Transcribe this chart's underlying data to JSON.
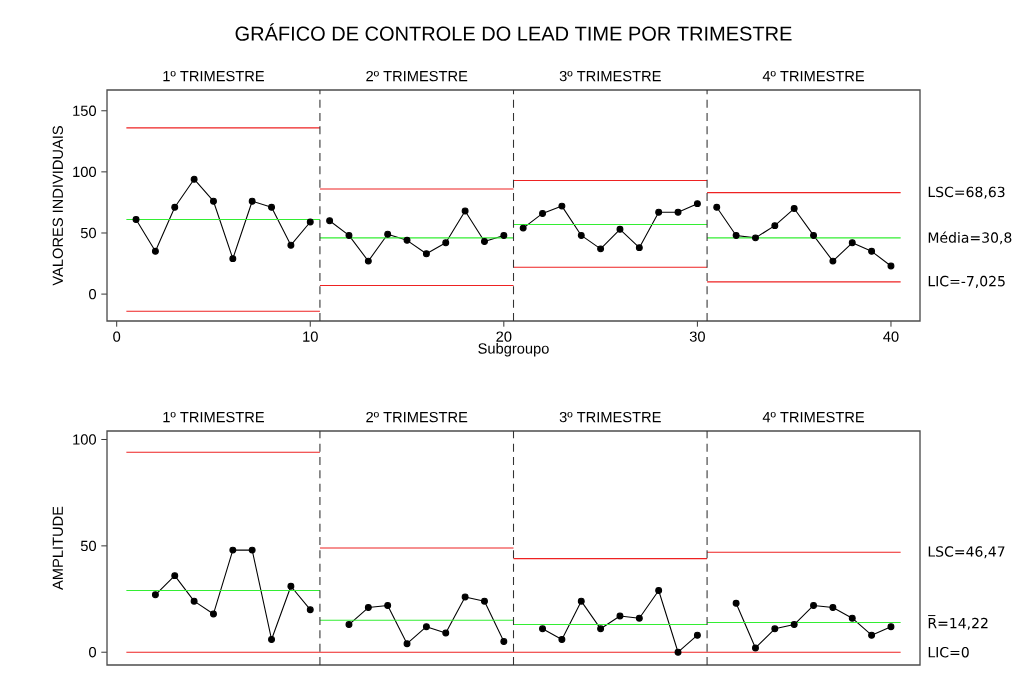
{
  "chart_data": [
    {
      "type": "line",
      "title": "GRÁFICO DE CONTROLE DO LEAD TIME POR TRIMESTRE",
      "xlabel": "Subgroupo",
      "ylabel": "VALORES INDIVIDUAIS",
      "xlim": [
        -0.5,
        41.5
      ],
      "ylim": [
        -22,
        167
      ],
      "xticks": [
        0,
        10,
        20,
        30,
        40
      ],
      "yticks": [
        0,
        50,
        100,
        150
      ],
      "marker": "circle",
      "line_style": "solid",
      "series": [
        {
          "color": "#000000",
          "x": [
            1,
            2,
            3,
            4,
            5,
            6,
            7,
            8,
            9,
            10
          ],
          "values": [
            61,
            35,
            71,
            94,
            76,
            29,
            76,
            71,
            40,
            59
          ]
        },
        {
          "color": "#000000",
          "x": [
            11,
            12,
            13,
            14,
            15,
            16,
            17,
            18,
            19,
            20
          ],
          "values": [
            60,
            48,
            27,
            49,
            44,
            33,
            42,
            68,
            43,
            48
          ]
        },
        {
          "color": "#000000",
          "x": [
            21,
            22,
            23,
            24,
            25,
            26,
            27,
            28,
            29,
            30
          ],
          "values": [
            54,
            66,
            72,
            48,
            37,
            53,
            38,
            67,
            67,
            74
          ]
        },
        {
          "color": "#000000",
          "x": [
            31,
            32,
            33,
            34,
            35,
            36,
            37,
            38,
            39,
            40
          ],
          "values": [
            71,
            48,
            46,
            56,
            70,
            48,
            27,
            42,
            35,
            23
          ]
        },
        {
          "color": "#ee2222",
          "marker": "none",
          "x": [
            0.5,
            10.5
          ],
          "values": [
            136,
            136
          ]
        },
        {
          "color": "#33ee33",
          "marker": "none",
          "x": [
            0.5,
            10.5
          ],
          "values": [
            61,
            61
          ]
        },
        {
          "color": "#ee2222",
          "marker": "none",
          "x": [
            0.5,
            10.5
          ],
          "values": [
            -14,
            -14
          ]
        },
        {
          "color": "#ee2222",
          "marker": "none",
          "x": [
            10.5,
            20.5
          ],
          "values": [
            86,
            86
          ]
        },
        {
          "color": "#33ee33",
          "marker": "none",
          "x": [
            10.5,
            20.5
          ],
          "values": [
            46,
            46
          ]
        },
        {
          "color": "#ee2222",
          "marker": "none",
          "x": [
            10.5,
            20.5
          ],
          "values": [
            7,
            7
          ]
        },
        {
          "color": "#ee2222",
          "marker": "none",
          "x": [
            20.5,
            30.5
          ],
          "values": [
            93,
            93
          ]
        },
        {
          "color": "#33ee33",
          "marker": "none",
          "x": [
            20.5,
            30.5
          ],
          "values": [
            57,
            57
          ]
        },
        {
          "color": "#ee2222",
          "marker": "none",
          "x": [
            20.5,
            30.5
          ],
          "values": [
            22,
            22
          ]
        },
        {
          "color": "#ee2222",
          "marker": "none",
          "x": [
            30.5,
            40.5
          ],
          "values": [
            83,
            83
          ]
        },
        {
          "color": "#33ee33",
          "marker": "none",
          "x": [
            30.5,
            40.5
          ],
          "values": [
            46,
            46
          ]
        },
        {
          "color": "#ee2222",
          "marker": "none",
          "x": [
            30.5,
            40.5
          ],
          "values": [
            10,
            10
          ]
        }
      ],
      "ref_lines": [
        {
          "axis": "x",
          "value": 10.5,
          "color": "#333333",
          "line_style": "dashed"
        },
        {
          "axis": "x",
          "value": 20.5,
          "color": "#333333",
          "line_style": "dashed"
        },
        {
          "axis": "x",
          "value": 30.5,
          "color": "#333333",
          "line_style": "dashed"
        }
      ],
      "annotations": [
        "1º TRIMESTRE",
        "2º TRIMESTRE",
        "3º TRIMESTRE",
        "4º TRIMESTRE",
        "LSC=68,63",
        "Média=30,8",
        "LIC=-7,025"
      ]
    },
    {
      "type": "line",
      "ylabel": "AMPLITUDE",
      "xlim": [
        -0.5,
        41.5
      ],
      "ylim": [
        -6,
        104
      ],
      "yticks": [
        0,
        50,
        100
      ],
      "tick_labels": "y",
      "marker": "circle",
      "line_style": "solid",
      "series": [
        {
          "color": "#000000",
          "x": [
            2,
            3,
            4,
            5,
            6,
            7,
            8,
            9,
            10
          ],
          "values": [
            27,
            36,
            24,
            18,
            48,
            48,
            6,
            31,
            20
          ]
        },
        {
          "color": "#000000",
          "x": [
            12,
            13,
            14,
            15,
            16,
            17,
            18,
            19,
            20
          ],
          "values": [
            13,
            21,
            22,
            4,
            12,
            9,
            26,
            24,
            5
          ]
        },
        {
          "color": "#000000",
          "x": [
            22,
            23,
            24,
            25,
            26,
            27,
            28,
            29,
            30
          ],
          "values": [
            11,
            6,
            24,
            11,
            17,
            16,
            29,
            0,
            8
          ]
        },
        {
          "color": "#000000",
          "x": [
            32,
            33,
            34,
            35,
            36,
            37,
            38,
            39,
            40
          ],
          "values": [
            23,
            2,
            11,
            13,
            22,
            21,
            16,
            8,
            12
          ]
        },
        {
          "color": "#ee2222",
          "marker": "none",
          "x": [
            0.5,
            10.5
          ],
          "values": [
            94,
            94
          ]
        },
        {
          "color": "#33ee33",
          "marker": "none",
          "x": [
            0.5,
            10.5
          ],
          "values": [
            29,
            29
          ]
        },
        {
          "color": "#ee2222",
          "marker": "none",
          "x": [
            10.5,
            20.5
          ],
          "values": [
            49,
            49
          ]
        },
        {
          "color": "#33ee33",
          "marker": "none",
          "x": [
            10.5,
            20.5
          ],
          "values": [
            15,
            15
          ]
        },
        {
          "color": "#ee2222",
          "marker": "none",
          "x": [
            20.5,
            30.5
          ],
          "values": [
            44,
            44
          ]
        },
        {
          "color": "#33ee33",
          "marker": "none",
          "x": [
            20.5,
            30.5
          ],
          "values": [
            13,
            13
          ]
        },
        {
          "color": "#ee2222",
          "marker": "none",
          "x": [
            30.5,
            40.5
          ],
          "values": [
            47,
            47
          ]
        },
        {
          "color": "#33ee33",
          "marker": "none",
          "x": [
            30.5,
            40.5
          ],
          "values": [
            14,
            14
          ]
        },
        {
          "color": "#ee2222",
          "marker": "none",
          "x": [
            0.5,
            40.5
          ],
          "values": [
            0,
            0
          ]
        }
      ],
      "ref_lines": [
        {
          "axis": "x",
          "value": 10.5,
          "color": "#333333",
          "line_style": "dashed"
        },
        {
          "axis": "x",
          "value": 20.5,
          "color": "#333333",
          "line_style": "dashed"
        },
        {
          "axis": "x",
          "value": 30.5,
          "color": "#333333",
          "line_style": "dashed"
        }
      ],
      "annotations": [
        "1º TRIMESTRE",
        "2º TRIMESTRE",
        "3º TRIMESTRE",
        "4º TRIMESTRE",
        "LSC=46,47",
        "R̅=14,22",
        "LIC=0"
      ]
    }
  ]
}
